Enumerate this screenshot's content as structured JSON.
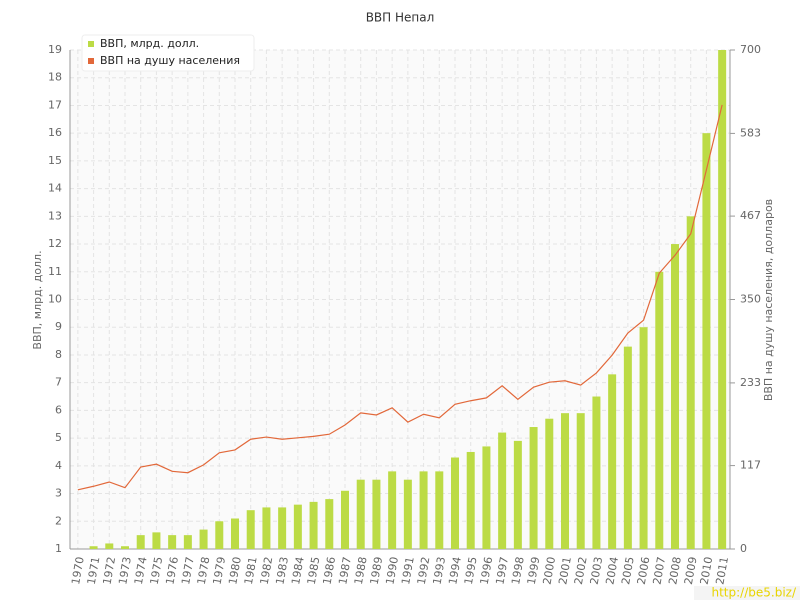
{
  "chart_data": {
    "type": "bar",
    "title": "ВВП Непал",
    "y_label": "ВВП, млрд. долл.",
    "y2_label": "ВВП на душу населения, долларов",
    "watermark": "http://be5.biz/",
    "categories": [
      "1970",
      "1971",
      "1972",
      "1973",
      "1974",
      "1975",
      "1976",
      "1977",
      "1978",
      "1979",
      "1980",
      "1981",
      "1982",
      "1983",
      "1984",
      "1985",
      "1986",
      "1987",
      "1988",
      "1989",
      "1990",
      "1991",
      "1992",
      "1993",
      "1994",
      "1995",
      "1996",
      "1997",
      "1998",
      "1999",
      "2000",
      "2001",
      "2002",
      "2003",
      "2004",
      "2005",
      "2006",
      "2007",
      "2008",
      "2009",
      "2010",
      "2011"
    ],
    "series": [
      {
        "name": "ВВП, млрд. долл.",
        "color": "#bcdb45",
        "type": "bar",
        "values": [
          1.0,
          1.1,
          1.2,
          1.1,
          1.5,
          1.6,
          1.5,
          1.5,
          1.7,
          2.0,
          2.1,
          2.4,
          2.5,
          2.5,
          2.6,
          2.7,
          2.8,
          3.1,
          3.5,
          3.5,
          3.8,
          3.5,
          3.8,
          3.8,
          4.3,
          4.5,
          4.7,
          5.2,
          4.9,
          5.4,
          5.7,
          5.9,
          5.9,
          6.5,
          7.3,
          8.3,
          9.0,
          11.0,
          12.0,
          13.0,
          16.0,
          19.0
        ]
      },
      {
        "name": "ВВП на душу населения",
        "color": "#e2683a",
        "type": "line",
        "axis": "y2",
        "values": [
          83,
          88,
          94,
          86,
          115,
          119,
          109,
          107,
          118,
          135,
          139,
          154,
          157,
          154,
          156,
          158,
          161,
          174,
          191,
          188,
          198,
          178,
          189,
          184,
          203,
          208,
          212,
          229,
          210,
          227,
          234,
          236,
          230,
          247,
          272,
          303,
          321,
          387,
          412,
          442,
          532,
          623
        ]
      }
    ],
    "ylim": [
      1,
      19
    ],
    "yticks": [
      1,
      2,
      3,
      4,
      5,
      6,
      7,
      8,
      9,
      10,
      11,
      12,
      13,
      14,
      15,
      16,
      17,
      18,
      19
    ],
    "y2lim": [
      0,
      700
    ],
    "y2ticks": [
      0,
      117,
      233,
      350,
      467,
      583,
      700
    ],
    "grid": true,
    "legend": "top-left"
  }
}
